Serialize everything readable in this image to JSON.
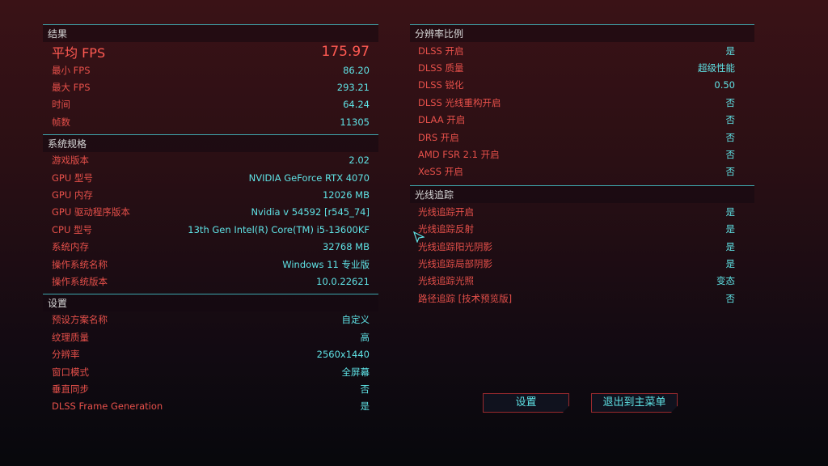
{
  "results": {
    "title": "结果",
    "avg": {
      "label": "平均 FPS",
      "value": "175.97"
    },
    "rows": [
      {
        "label": "最小 FPS",
        "value": "86.20"
      },
      {
        "label": "最大 FPS",
        "value": "293.21"
      },
      {
        "label": "时间",
        "value": "64.24"
      },
      {
        "label": "帧数",
        "value": "11305"
      }
    ]
  },
  "system": {
    "title": "系统规格",
    "rows": [
      {
        "label": "游戏版本",
        "value": "2.02"
      },
      {
        "label": "GPU 型号",
        "value": "NVIDIA GeForce RTX 4070"
      },
      {
        "label": "GPU 内存",
        "value": "12026 MB"
      },
      {
        "label": "GPU 驱动程序版本",
        "value": "Nvidia v 54592 [r545_74]"
      },
      {
        "label": "CPU 型号",
        "value": "13th Gen Intel(R) Core(TM) i5-13600KF"
      },
      {
        "label": "系统内存",
        "value": "32768 MB"
      },
      {
        "label": "操作系统名称",
        "value": "Windows 11 专业版"
      },
      {
        "label": "操作系统版本",
        "value": "10.0.22621"
      }
    ]
  },
  "settings": {
    "title": "设置",
    "rows": [
      {
        "label": "预设方案名称",
        "value": "自定义"
      },
      {
        "label": "纹理质量",
        "value": "高"
      },
      {
        "label": "分辨率",
        "value": "2560x1440"
      },
      {
        "label": "窗口模式",
        "value": "全屏幕"
      },
      {
        "label": "垂直同步",
        "value": "否"
      },
      {
        "label": "DLSS Frame Generation",
        "value": "是"
      }
    ]
  },
  "scaling": {
    "title": "分辨率比例",
    "rows": [
      {
        "label": "DLSS 开启",
        "value": "是"
      },
      {
        "label": "DLSS 质量",
        "value": "超级性能"
      },
      {
        "label": "DLSS 锐化",
        "value": "0.50"
      },
      {
        "label": "DLSS 光线重构开启",
        "value": "否"
      },
      {
        "label": "DLAA 开启",
        "value": "否"
      },
      {
        "label": "DRS 开启",
        "value": "否"
      },
      {
        "label": "AMD FSR 2.1 开启",
        "value": "否"
      },
      {
        "label": "XeSS 开启",
        "value": "否"
      }
    ]
  },
  "raytracing": {
    "title": "光线追踪",
    "rows": [
      {
        "label": "光线追踪开启",
        "value": "是"
      },
      {
        "label": "光线追踪反射",
        "value": "是"
      },
      {
        "label": "光线追踪阳光阴影",
        "value": "是"
      },
      {
        "label": "光线追踪局部阴影",
        "value": "是"
      },
      {
        "label": "光线追踪光照",
        "value": "变态"
      },
      {
        "label": "路径追踪 [技术预览版]",
        "value": "否"
      }
    ]
  },
  "buttons": {
    "settings": "设置",
    "exit": "退出到主菜单"
  },
  "colors": {
    "label": "#e6504a",
    "value": "#5fe3e6",
    "accent_line": "#3ea6ad",
    "button_border": "#9a2a2e"
  }
}
